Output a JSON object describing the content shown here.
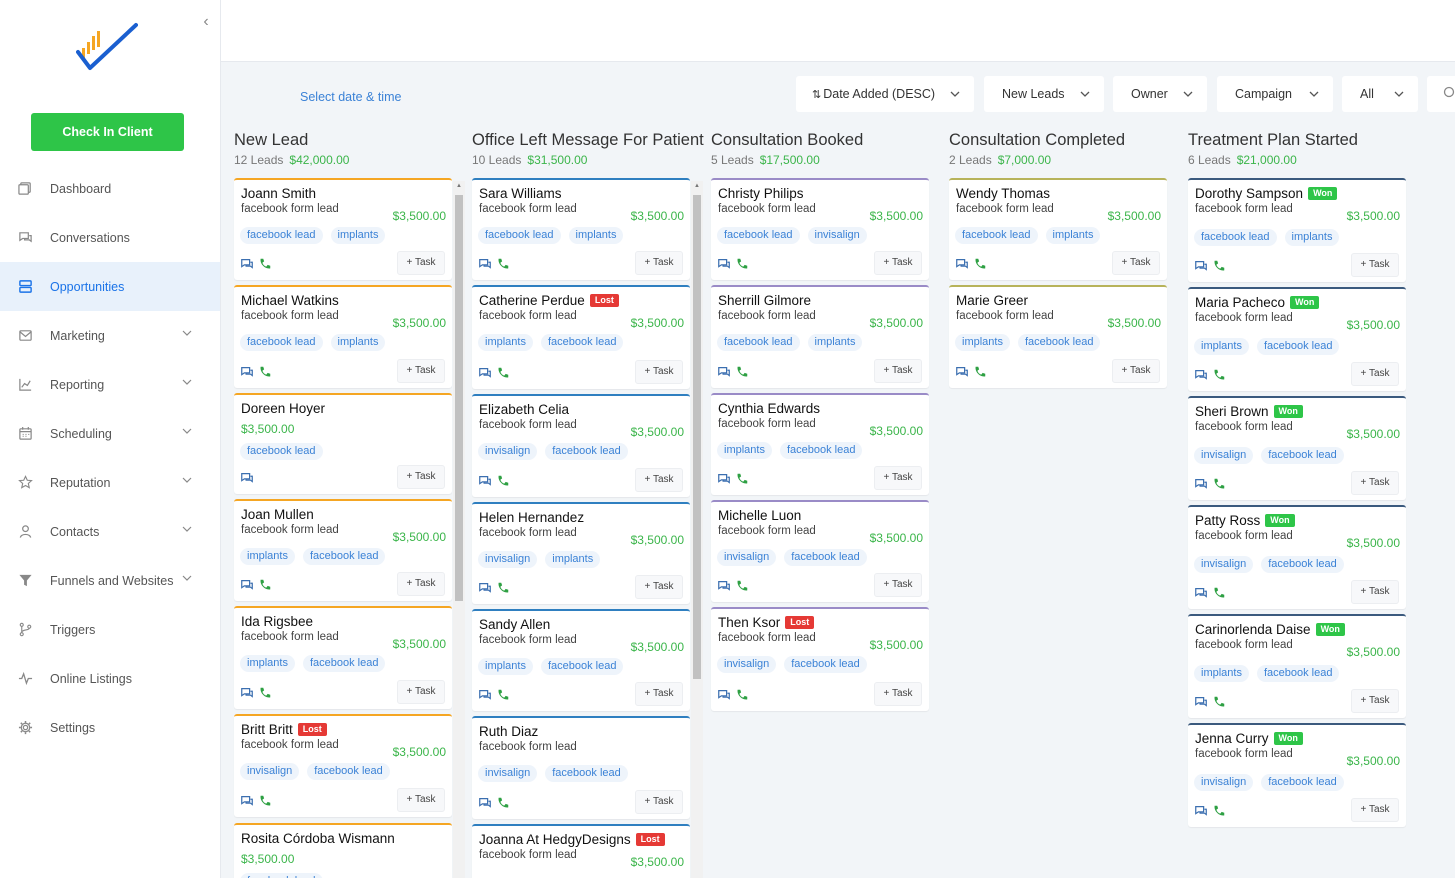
{
  "sidebar": {
    "checkin_label": "Check In Client",
    "items": [
      {
        "label": "Dashboard",
        "icon": "dashboard-icon",
        "active": false,
        "chevron": false
      },
      {
        "label": "Conversations",
        "icon": "chat-icon",
        "active": false,
        "chevron": false
      },
      {
        "label": "Opportunities",
        "icon": "opportunities-icon",
        "active": true,
        "chevron": false
      },
      {
        "label": "Marketing",
        "icon": "mail-icon",
        "active": false,
        "chevron": true
      },
      {
        "label": "Reporting",
        "icon": "chart-icon",
        "active": false,
        "chevron": true
      },
      {
        "label": "Scheduling",
        "icon": "calendar-icon",
        "active": false,
        "chevron": true
      },
      {
        "label": "Reputation",
        "icon": "star-icon",
        "active": false,
        "chevron": true
      },
      {
        "label": "Contacts",
        "icon": "person-icon",
        "active": false,
        "chevron": true
      },
      {
        "label": "Funnels and Websites",
        "icon": "funnel-icon",
        "active": false,
        "chevron": true
      },
      {
        "label": "Triggers",
        "icon": "branch-icon",
        "active": false,
        "chevron": false
      },
      {
        "label": "Online Listings",
        "icon": "pulse-icon",
        "active": false,
        "chevron": false
      },
      {
        "label": "Settings",
        "icon": "gear-icon",
        "active": false,
        "chevron": false
      }
    ]
  },
  "toolbar": {
    "date_label": "Select date & time",
    "sort_label": "Date Added (DESC)",
    "pipeline_label": "New Leads",
    "owner_label": "Owner",
    "campaign_label": "Campaign",
    "status_label": "All"
  },
  "colors": {
    "accent": "#1a73e8",
    "green": "#2ec548",
    "lost": "#e53935"
  },
  "columns": [
    {
      "title": "New Lead",
      "count": "12 Leads",
      "amount": "$42,000.00",
      "color": "c-orange",
      "cards": [
        {
          "name": "Joann Smith",
          "source": "facebook form lead",
          "value": "$3,500.00",
          "tags": [
            "facebook lead",
            "implants"
          ],
          "phone": true
        },
        {
          "name": "Michael Watkins",
          "source": "facebook form lead",
          "value": "$3,500.00",
          "tags": [
            "facebook lead",
            "implants"
          ],
          "phone": true
        },
        {
          "name": "Doreen Hoyer",
          "source": "",
          "value": "$3,500.00",
          "tags": [
            "facebook lead"
          ],
          "phone": false
        },
        {
          "name": "Joan Mullen",
          "source": "facebook form lead",
          "value": "$3,500.00",
          "tags": [
            "implants",
            "facebook lead"
          ],
          "phone": true
        },
        {
          "name": "Ida Rigsbee",
          "source": "facebook form lead",
          "value": "$3,500.00",
          "tags": [
            "implants",
            "facebook lead"
          ],
          "phone": true
        },
        {
          "name": "Britt Britt",
          "badge": "Lost",
          "source": "facebook form lead",
          "value": "$3,500.00",
          "tags": [
            "invisalign",
            "facebook lead"
          ],
          "phone": true
        },
        {
          "name": "Rosita Córdoba Wismann",
          "source": "",
          "value": "$3,500.00",
          "tags": [
            "facebook lead"
          ],
          "phone": false
        }
      ]
    },
    {
      "title": "Office Left Message For Patient",
      "count": "10 Leads",
      "amount": "$31,500.00",
      "color": "c-blue",
      "cards": [
        {
          "name": "Sara Williams",
          "source": "facebook form lead",
          "value": "$3,500.00",
          "tags": [
            "facebook lead",
            "implants"
          ],
          "phone": true
        },
        {
          "name": "Catherine Perdue",
          "badge": "Lost",
          "source": "facebook form lead",
          "value": "$3,500.00",
          "tags": [
            "implants",
            "facebook lead"
          ],
          "phone": true
        },
        {
          "name": "Elizabeth Celia",
          "source": "facebook form lead",
          "value": "$3,500.00",
          "tags": [
            "invisalign",
            "facebook lead"
          ],
          "phone": true
        },
        {
          "name": "Helen Hernandez",
          "source": "facebook form lead",
          "value": "$3,500.00",
          "tags": [
            "invisalign",
            "implants"
          ],
          "phone": true
        },
        {
          "name": "Sandy Allen",
          "source": "facebook form lead",
          "value": "$3,500.00",
          "tags": [
            "implants",
            "facebook lead"
          ],
          "phone": true
        },
        {
          "name": "Ruth Diaz",
          "source": "facebook form lead",
          "value": "",
          "tags": [
            "invisalign",
            "facebook lead"
          ],
          "phone": true
        },
        {
          "name": "Joanna At HedgyDesigns",
          "badge": "Lost",
          "source": "facebook form lead",
          "value": "$3,500.00",
          "tags": [],
          "phone": true
        }
      ]
    },
    {
      "title": "Consultation Booked",
      "count": "5 Leads",
      "amount": "$17,500.00",
      "color": "c-purple",
      "cards": [
        {
          "name": "Christy Philips",
          "source": "facebook form lead",
          "value": "$3,500.00",
          "tags": [
            "facebook lead",
            "invisalign"
          ],
          "phone": true
        },
        {
          "name": "Sherrill Gilmore",
          "source": "facebook form lead",
          "value": "$3,500.00",
          "tags": [
            "facebook lead",
            "implants"
          ],
          "phone": true
        },
        {
          "name": "Cynthia Edwards",
          "source": "facebook form lead",
          "value": "$3,500.00",
          "tags": [
            "implants",
            "facebook lead"
          ],
          "phone": true
        },
        {
          "name": "Michelle Luon",
          "source": "facebook form lead",
          "value": "$3,500.00",
          "tags": [
            "invisalign",
            "facebook lead"
          ],
          "phone": true
        },
        {
          "name": "Then Ksor",
          "badge": "Lost",
          "source": "facebook form lead",
          "value": "$3,500.00",
          "tags": [
            "invisalign",
            "facebook lead"
          ],
          "phone": true
        }
      ]
    },
    {
      "title": "Consultation Completed",
      "count": "2 Leads",
      "amount": "$7,000.00",
      "color": "c-olive",
      "cards": [
        {
          "name": "Wendy Thomas",
          "source": "facebook form lead",
          "value": "$3,500.00",
          "tags": [
            "facebook lead",
            "implants"
          ],
          "phone": true
        },
        {
          "name": "Marie Greer",
          "source": "facebook form lead",
          "value": "$3,500.00",
          "tags": [
            "implants",
            "facebook lead"
          ],
          "phone": true
        }
      ]
    },
    {
      "title": "Treatment Plan Started",
      "count": "6 Leads",
      "amount": "$21,000.00",
      "color": "c-navy",
      "cards": [
        {
          "name": "Dorothy Sampson",
          "badge": "Won",
          "source": "facebook form lead",
          "value": "$3,500.00",
          "tags": [
            "facebook lead",
            "implants"
          ],
          "phone": true
        },
        {
          "name": "Maria Pacheco",
          "badge": "Won",
          "source": "facebook form lead",
          "value": "$3,500.00",
          "tags": [
            "implants",
            "facebook lead"
          ],
          "phone": true
        },
        {
          "name": "Sheri Brown",
          "badge": "Won",
          "source": "facebook form lead",
          "value": "$3,500.00",
          "tags": [
            "invisalign",
            "facebook lead"
          ],
          "phone": true
        },
        {
          "name": "Patty Ross",
          "badge": "Won",
          "source": "facebook form lead",
          "value": "$3,500.00",
          "tags": [
            "invisalign",
            "facebook lead"
          ],
          "phone": true
        },
        {
          "name": "Carinorlenda Daise",
          "badge": "Won",
          "source": "facebook form lead",
          "value": "$3,500.00",
          "tags": [
            "implants",
            "facebook lead"
          ],
          "phone": true
        },
        {
          "name": "Jenna Curry",
          "badge": "Won",
          "source": "facebook form lead",
          "value": "$3,500.00",
          "tags": [
            "invisalign",
            "facebook lead"
          ],
          "phone": true
        }
      ]
    }
  ],
  "task_label": "+ Task"
}
